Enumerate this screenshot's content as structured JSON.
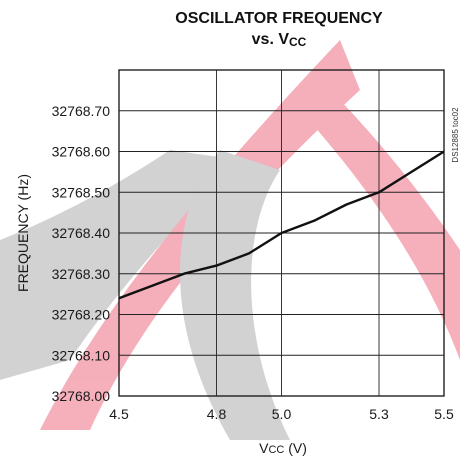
{
  "chart_data": {
    "type": "line",
    "title_line1": "OSCILLATOR FREQUENCY",
    "title_line2_prefix": "vs. V",
    "title_line2_sub": "CC",
    "xlabel_main": "V",
    "xlabel_sub": "CC",
    "xlabel_unit": " (V)",
    "ylabel": "FREQUENCY (Hz)",
    "side_code": "DS12885 toc02",
    "xlim": [
      4.5,
      5.5
    ],
    "ylim": [
      32768.0,
      32768.8
    ],
    "x_ticks": [
      4.5,
      4.8,
      5.0,
      5.3,
      5.5
    ],
    "x_tick_labels": [
      "4.5",
      "4.8",
      "5.0",
      "5.3",
      "5.5"
    ],
    "y_ticks": [
      32768.0,
      32768.1,
      32768.2,
      32768.3,
      32768.4,
      32768.5,
      32768.6,
      32768.7
    ],
    "y_tick_labels": [
      "32768.00",
      "32768.10",
      "32768.20",
      "32768.30",
      "32768.40",
      "32768.50",
      "32768.60",
      "32768.70"
    ],
    "grid": true,
    "series": [
      {
        "x": [
          4.5,
          4.6,
          4.7,
          4.8,
          4.9,
          5.0,
          5.1,
          5.2,
          5.3,
          5.4,
          5.5
        ],
        "y": [
          32768.24,
          32768.27,
          32768.3,
          32768.32,
          32768.35,
          32768.4,
          32768.43,
          32768.47,
          32768.5,
          32768.55,
          32768.6
        ]
      }
    ]
  }
}
